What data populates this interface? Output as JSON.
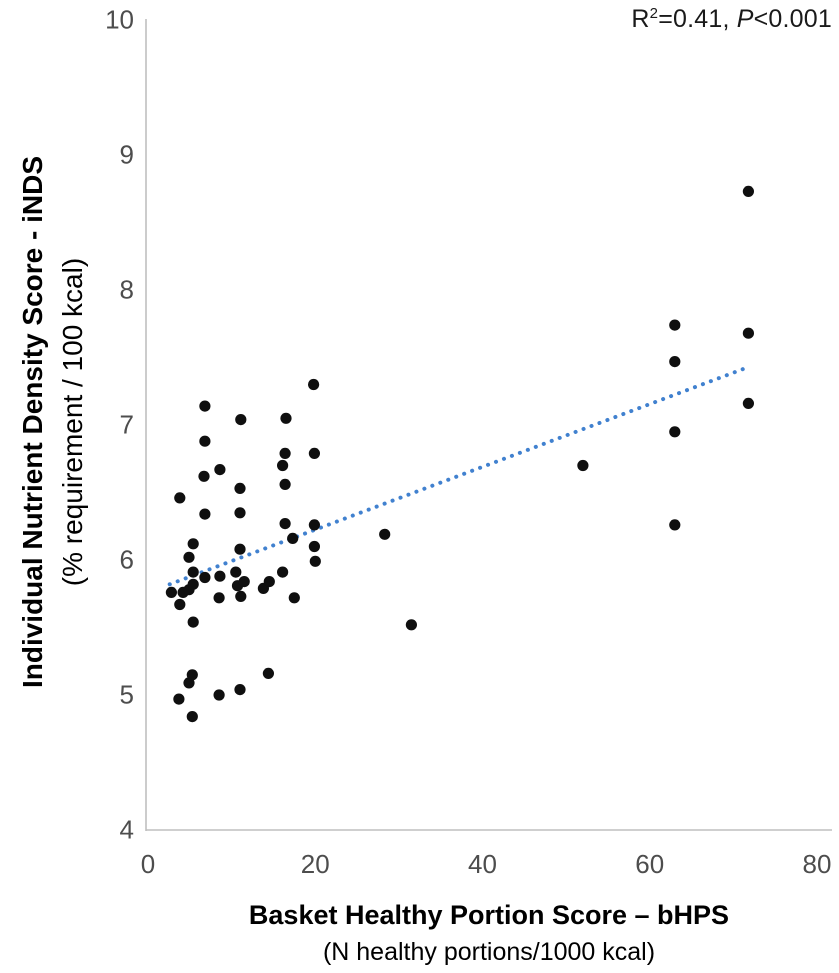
{
  "chart_data": {
    "type": "scatter",
    "title": "",
    "annotation": {
      "r_label": "R",
      "r_exponent": "2",
      "r_value_text": "=0.41, ",
      "p_label": "P",
      "p_value_text": "<0.001"
    },
    "y_axis": {
      "title_line1": "Individual Nutrient Density Score - iNDS",
      "title_line2": "(% requirement / 100 kcal)",
      "ticks": [
        10,
        9,
        8,
        7,
        6,
        5,
        4
      ],
      "range": [
        4,
        10
      ]
    },
    "x_axis": {
      "title_line1": "Basket Healthy Portion Score – bHPS",
      "title_line2": "(N healthy portions/1000 kcal)",
      "ticks": [
        0,
        20,
        40,
        60,
        80
      ],
      "range": [
        0,
        80
      ]
    },
    "grid": false,
    "legend_position": "none",
    "colors": {
      "marker": "#0f0f0f",
      "trendline": "#4181cf",
      "axis_line": "#bfbfbf",
      "tick_text": "#4d4d4d"
    },
    "trendline": {
      "style": "dotted-linear",
      "x_start": 2.6,
      "y_start": 5.82,
      "x_end": 71.4,
      "y_end": 7.42
    },
    "points": [
      [
        2.8,
        5.76
      ],
      [
        3.8,
        6.46
      ],
      [
        3.8,
        5.67
      ],
      [
        3.7,
        4.97
      ],
      [
        4.2,
        5.76
      ],
      [
        4.9,
        6.02
      ],
      [
        4.9,
        5.78
      ],
      [
        4.9,
        5.09
      ],
      [
        5.3,
        5.15
      ],
      [
        5.4,
        6.12
      ],
      [
        5.4,
        5.91
      ],
      [
        5.4,
        5.82
      ],
      [
        5.4,
        5.54
      ],
      [
        5.3,
        4.84
      ],
      [
        6.7,
        6.62
      ],
      [
        6.8,
        7.14
      ],
      [
        6.8,
        6.88
      ],
      [
        6.8,
        6.34
      ],
      [
        6.8,
        5.87
      ],
      [
        8.5,
        5.72
      ],
      [
        8.6,
        6.67
      ],
      [
        8.6,
        5.88
      ],
      [
        8.5,
        5.0
      ],
      [
        10.5,
        5.91
      ],
      [
        10.7,
        5.81
      ],
      [
        11.0,
        6.53
      ],
      [
        11.0,
        6.35
      ],
      [
        11.0,
        6.08
      ],
      [
        11.1,
        7.04
      ],
      [
        11.1,
        5.73
      ],
      [
        11.0,
        5.04
      ],
      [
        11.5,
        5.84
      ],
      [
        13.8,
        5.79
      ],
      [
        14.5,
        5.84
      ],
      [
        14.4,
        5.16
      ],
      [
        16.1,
        6.7
      ],
      [
        16.1,
        5.91
      ],
      [
        16.5,
        7.05
      ],
      [
        16.4,
        6.79
      ],
      [
        16.4,
        6.56
      ],
      [
        16.4,
        6.27
      ],
      [
        17.3,
        6.16
      ],
      [
        17.5,
        5.72
      ],
      [
        19.8,
        7.3
      ],
      [
        19.9,
        6.79
      ],
      [
        19.9,
        6.26
      ],
      [
        19.9,
        6.1
      ],
      [
        20.0,
        5.99
      ],
      [
        28.3,
        6.19
      ],
      [
        31.5,
        5.52
      ],
      [
        52.0,
        6.7
      ],
      [
        63.0,
        7.74
      ],
      [
        63.0,
        7.47
      ],
      [
        63.0,
        6.95
      ],
      [
        63.0,
        6.26
      ],
      [
        71.8,
        8.73
      ],
      [
        71.8,
        7.68
      ],
      [
        71.8,
        7.16
      ]
    ]
  }
}
